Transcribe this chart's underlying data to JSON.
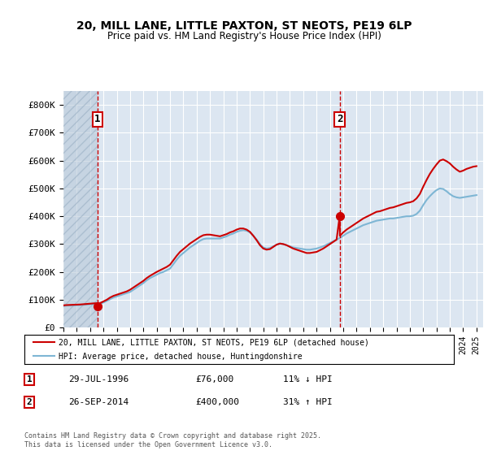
{
  "title": "20, MILL LANE, LITTLE PAXTON, ST NEOTS, PE19 6LP",
  "subtitle": "Price paid vs. HM Land Registry's House Price Index (HPI)",
  "ylabel": "",
  "background_color": "#ffffff",
  "plot_bg_color": "#dce6f1",
  "grid_color": "#ffffff",
  "hatch_color": "#b8c8d8",
  "sale1_date": 1996.57,
  "sale1_price": 76000,
  "sale2_date": 2014.73,
  "sale2_price": 400000,
  "annotation1_label": "1",
  "annotation2_label": "2",
  "legend_line1": "20, MILL LANE, LITTLE PAXTON, ST NEOTS, PE19 6LP (detached house)",
  "legend_line2": "HPI: Average price, detached house, Huntingdonshire",
  "note1_num": "1",
  "note1_date": "29-JUL-1996",
  "note1_price": "£76,000",
  "note1_hpi": "11% ↓ HPI",
  "note2_num": "2",
  "note2_date": "26-SEP-2014",
  "note2_price": "£400,000",
  "note2_hpi": "31% ↑ HPI",
  "copyright": "Contains HM Land Registry data © Crown copyright and database right 2025.\nThis data is licensed under the Open Government Licence v3.0.",
  "ylim": [
    0,
    850000
  ],
  "xlim_start": 1994.0,
  "xlim_end": 2025.5,
  "hpi_color": "#7eb6d4",
  "price_color": "#cc0000",
  "dashed_vline_color": "#cc0000",
  "hpi_data_x": [
    1994.0,
    1994.25,
    1994.5,
    1994.75,
    1995.0,
    1995.25,
    1995.5,
    1995.75,
    1996.0,
    1996.25,
    1996.5,
    1996.75,
    1997.0,
    1997.25,
    1997.5,
    1997.75,
    1998.0,
    1998.25,
    1998.5,
    1998.75,
    1999.0,
    1999.25,
    1999.5,
    1999.75,
    2000.0,
    2000.25,
    2000.5,
    2000.75,
    2001.0,
    2001.25,
    2001.5,
    2001.75,
    2002.0,
    2002.25,
    2002.5,
    2002.75,
    2003.0,
    2003.25,
    2003.5,
    2003.75,
    2004.0,
    2004.25,
    2004.5,
    2004.75,
    2005.0,
    2005.25,
    2005.5,
    2005.75,
    2006.0,
    2006.25,
    2006.5,
    2006.75,
    2007.0,
    2007.25,
    2007.5,
    2007.75,
    2008.0,
    2008.25,
    2008.5,
    2008.75,
    2009.0,
    2009.25,
    2009.5,
    2009.75,
    2010.0,
    2010.25,
    2010.5,
    2010.75,
    2011.0,
    2011.25,
    2011.5,
    2011.75,
    2012.0,
    2012.25,
    2012.5,
    2012.75,
    2013.0,
    2013.25,
    2013.5,
    2013.75,
    2014.0,
    2014.25,
    2014.5,
    2014.75,
    2015.0,
    2015.25,
    2015.5,
    2015.75,
    2016.0,
    2016.25,
    2016.5,
    2016.75,
    2017.0,
    2017.25,
    2017.5,
    2017.75,
    2018.0,
    2018.25,
    2018.5,
    2018.75,
    2019.0,
    2019.25,
    2019.5,
    2019.75,
    2020.0,
    2020.25,
    2020.5,
    2020.75,
    2021.0,
    2021.25,
    2021.5,
    2021.75,
    2022.0,
    2022.25,
    2022.5,
    2022.75,
    2023.0,
    2023.25,
    2023.5,
    2023.75,
    2024.0,
    2024.25,
    2024.5,
    2024.75,
    2025.0
  ],
  "hpi_data_y": [
    78000,
    79000,
    79500,
    80000,
    80500,
    81000,
    82000,
    83000,
    84000,
    85000,
    85500,
    86000,
    90000,
    96000,
    102000,
    108000,
    112000,
    116000,
    120000,
    124000,
    128000,
    136000,
    144000,
    152000,
    160000,
    170000,
    178000,
    184000,
    190000,
    196000,
    200000,
    206000,
    212000,
    228000,
    244000,
    258000,
    268000,
    278000,
    288000,
    296000,
    304000,
    312000,
    318000,
    320000,
    320000,
    320000,
    320000,
    320000,
    324000,
    328000,
    334000,
    338000,
    344000,
    348000,
    350000,
    348000,
    342000,
    330000,
    316000,
    300000,
    288000,
    284000,
    286000,
    292000,
    298000,
    302000,
    300000,
    296000,
    292000,
    288000,
    286000,
    284000,
    282000,
    280000,
    280000,
    282000,
    284000,
    288000,
    292000,
    298000,
    304000,
    310000,
    316000,
    322000,
    330000,
    338000,
    344000,
    350000,
    356000,
    362000,
    368000,
    372000,
    376000,
    380000,
    384000,
    386000,
    388000,
    390000,
    392000,
    392000,
    394000,
    396000,
    398000,
    400000,
    400000,
    402000,
    408000,
    420000,
    440000,
    458000,
    472000,
    484000,
    494000,
    500000,
    498000,
    490000,
    480000,
    472000,
    468000,
    466000,
    468000,
    470000,
    472000,
    474000,
    476000
  ],
  "price_data_x": [
    1994.0,
    1994.25,
    1994.5,
    1994.75,
    1995.0,
    1995.25,
    1995.5,
    1995.75,
    1996.0,
    1996.25,
    1996.5,
    1996.57,
    1996.75,
    1997.0,
    1997.25,
    1997.5,
    1997.75,
    1998.0,
    1998.25,
    1998.5,
    1998.75,
    1999.0,
    1999.25,
    1999.5,
    1999.75,
    2000.0,
    2000.25,
    2000.5,
    2000.75,
    2001.0,
    2001.25,
    2001.5,
    2001.75,
    2002.0,
    2002.25,
    2002.5,
    2002.75,
    2003.0,
    2003.25,
    2003.5,
    2003.75,
    2004.0,
    2004.25,
    2004.5,
    2004.75,
    2005.0,
    2005.25,
    2005.5,
    2005.75,
    2006.0,
    2006.25,
    2006.5,
    2006.75,
    2007.0,
    2007.25,
    2007.5,
    2007.75,
    2008.0,
    2008.25,
    2008.5,
    2008.75,
    2009.0,
    2009.25,
    2009.5,
    2009.75,
    2010.0,
    2010.25,
    2010.5,
    2010.75,
    2011.0,
    2011.25,
    2011.5,
    2011.75,
    2012.0,
    2012.25,
    2012.5,
    2012.75,
    2013.0,
    2013.25,
    2013.5,
    2013.75,
    2014.0,
    2014.25,
    2014.5,
    2014.73,
    2014.75,
    2015.0,
    2015.25,
    2015.5,
    2015.75,
    2016.0,
    2016.25,
    2016.5,
    2016.75,
    2017.0,
    2017.25,
    2017.5,
    2017.75,
    2018.0,
    2018.25,
    2018.5,
    2018.75,
    2019.0,
    2019.25,
    2019.5,
    2019.75,
    2020.0,
    2020.25,
    2020.5,
    2020.75,
    2021.0,
    2021.25,
    2021.5,
    2021.75,
    2022.0,
    2022.25,
    2022.5,
    2022.75,
    2023.0,
    2023.25,
    2023.5,
    2023.75,
    2024.0,
    2024.25,
    2024.5,
    2024.75,
    2025.0
  ],
  "price_data_y": [
    80000,
    81000,
    81500,
    82000,
    82500,
    83000,
    84000,
    85000,
    86000,
    87000,
    87500,
    76000,
    88000,
    94000,
    100000,
    108000,
    114000,
    118000,
    122000,
    126000,
    130000,
    136000,
    144000,
    152000,
    160000,
    168000,
    178000,
    186000,
    193000,
    200000,
    206000,
    212000,
    218000,
    226000,
    242000,
    258000,
    272000,
    282000,
    292000,
    302000,
    310000,
    318000,
    326000,
    332000,
    334000,
    334000,
    332000,
    330000,
    328000,
    332000,
    336000,
    342000,
    346000,
    352000,
    356000,
    356000,
    352000,
    344000,
    330000,
    314000,
    296000,
    284000,
    280000,
    282000,
    290000,
    298000,
    302000,
    300000,
    296000,
    290000,
    284000,
    280000,
    276000,
    272000,
    268000,
    268000,
    270000,
    272000,
    278000,
    284000,
    292000,
    300000,
    308000,
    316000,
    400000,
    330000,
    342000,
    352000,
    360000,
    368000,
    376000,
    384000,
    392000,
    398000,
    404000,
    410000,
    416000,
    418000,
    422000,
    426000,
    430000,
    432000,
    436000,
    440000,
    444000,
    448000,
    450000,
    454000,
    464000,
    480000,
    506000,
    530000,
    552000,
    570000,
    586000,
    600000,
    604000,
    598000,
    590000,
    578000,
    568000,
    560000,
    564000,
    570000,
    574000,
    578000,
    580000
  ]
}
